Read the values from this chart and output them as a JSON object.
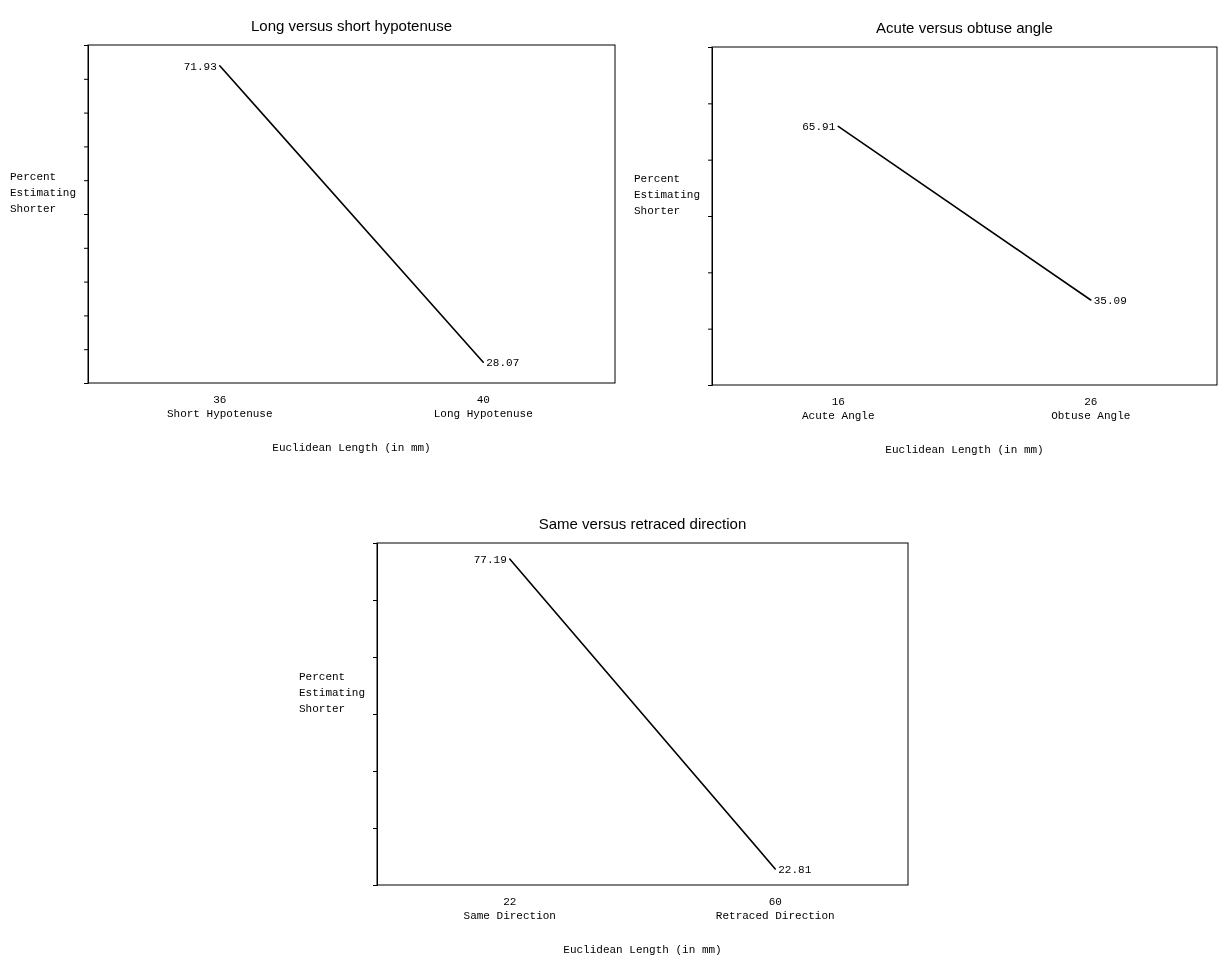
{
  "chart_data": [
    {
      "type": "line",
      "title": "Long versus short hypotenuse",
      "xlabel": "Euclidean Length (in mm)",
      "ylabel": "Percent\nEstimating\nShorter",
      "categories": [
        "36\nShort Hypotenuse",
        "40\nLong Hypotenuse"
      ],
      "values": [
        71.93,
        28.07
      ],
      "color": "#000000",
      "ylim": [
        25,
        75
      ],
      "yticks": [
        {
          "value": 30,
          "label": null
        },
        {
          "value": 35,
          "label": null
        },
        {
          "value": 40,
          "label": null
        },
        {
          "value": 45,
          "label": null
        },
        {
          "value": 50,
          "label": null
        },
        {
          "value": 55,
          "label": null
        },
        {
          "value": 60,
          "label": null
        },
        {
          "value": 65,
          "label": null
        },
        {
          "value": 70,
          "label": null
        }
      ],
      "tick_labels": "x",
      "data_labels": true
    },
    {
      "type": "line",
      "title": "Acute versus obtuse angle",
      "xlabel": "Euclidean Length (in mm)",
      "ylabel": "Percent\nEstimating\nShorter",
      "categories": [
        "16\nAcute Angle",
        "26\nObtuse Angle"
      ],
      "values": [
        65.91,
        35.09
      ],
      "color": "#000000",
      "ylim": [
        20,
        80
      ],
      "yticks": [
        {
          "value": 30,
          "label": null
        },
        {
          "value": 40,
          "label": null
        },
        {
          "value": 50,
          "label": null
        },
        {
          "value": 60,
          "label": null
        },
        {
          "value": 70,
          "label": null
        }
      ],
      "tick_labels": "x",
      "data_labels": true
    },
    {
      "type": "line",
      "title": "Same versus retraced direction",
      "xlabel": "Euclidean Length (in mm)",
      "ylabel": "Percent\nEstimating\nShorter",
      "categories": [
        "22\nSame Direction",
        "60\nRetraced Direction"
      ],
      "values": [
        77.19,
        22.81
      ],
      "color": "#000000",
      "ylim": [
        20,
        80
      ],
      "yticks": [
        {
          "value": 30,
          "label": null
        },
        {
          "value": 40,
          "label": null
        },
        {
          "value": 50,
          "label": null
        },
        {
          "value": 60,
          "label": null
        },
        {
          "value": 70,
          "label": null
        }
      ],
      "tick_labels": "x",
      "data_labels": true
    }
  ]
}
